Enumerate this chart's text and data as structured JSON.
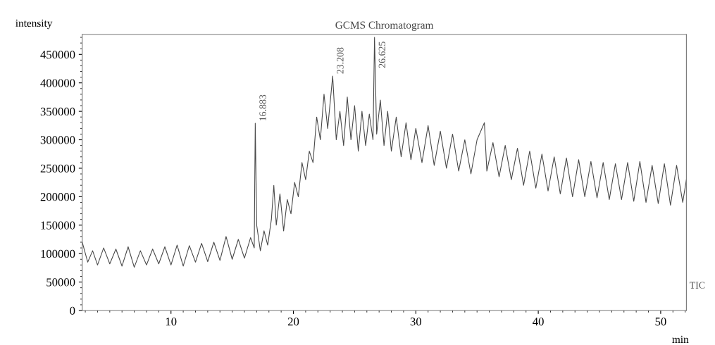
{
  "chart_data": {
    "type": "line",
    "title": "GCMS Chromatogram",
    "xlabel": "min",
    "ylabel": "intensity",
    "xlim": [
      2.75,
      52.1
    ],
    "ylim": [
      0,
      485000
    ],
    "xticks": [
      10,
      20,
      30,
      40,
      50
    ],
    "yticks": [
      0,
      50000,
      100000,
      150000,
      200000,
      250000,
      300000,
      350000,
      400000,
      450000
    ],
    "grid": false,
    "marker": "none",
    "line_style": "solid",
    "annotations": [
      {
        "text": "16.883",
        "x": 16.883,
        "y": 329000
      },
      {
        "text": "23.208",
        "x": 23.208,
        "y": 412000
      },
      {
        "text": "26.625",
        "x": 26.625,
        "y": 480000
      },
      "TIC"
    ],
    "series": [
      {
        "color": "#4a4a4a",
        "x": [
          2.75,
          3.2,
          3.6,
          4.0,
          4.5,
          5.0,
          5.5,
          6.0,
          6.5,
          7.0,
          7.5,
          8.0,
          8.5,
          9.0,
          9.5,
          10.0,
          10.5,
          11.0,
          11.5,
          12.0,
          12.5,
          13.0,
          13.5,
          14.0,
          14.5,
          15.0,
          15.5,
          16.0,
          16.5,
          16.8,
          16.883,
          17.0,
          17.3,
          17.6,
          17.9,
          18.2,
          18.4,
          18.6,
          18.9,
          19.2,
          19.5,
          19.8,
          20.1,
          20.4,
          20.7,
          21.0,
          21.3,
          21.6,
          21.9,
          22.2,
          22.5,
          22.8,
          23.208,
          23.5,
          23.8,
          24.1,
          24.4,
          24.7,
          25.0,
          25.3,
          25.6,
          25.9,
          26.2,
          26.5,
          26.625,
          26.8,
          27.1,
          27.4,
          27.7,
          28.0,
          28.4,
          28.8,
          29.2,
          29.6,
          30.0,
          30.5,
          31.0,
          31.5,
          32.0,
          32.5,
          33.0,
          33.5,
          34.0,
          34.5,
          35.0,
          35.6,
          35.8,
          36.3,
          36.8,
          37.3,
          37.8,
          38.3,
          38.8,
          39.3,
          39.8,
          40.3,
          40.8,
          41.3,
          41.8,
          42.3,
          42.8,
          43.3,
          43.8,
          44.3,
          44.8,
          45.3,
          45.8,
          46.3,
          46.8,
          47.3,
          47.8,
          48.3,
          48.8,
          49.3,
          49.8,
          50.3,
          50.8,
          51.3,
          51.8,
          52.1
        ],
        "values": [
          120000,
          85000,
          105000,
          80000,
          110000,
          82000,
          108000,
          78000,
          112000,
          76000,
          105000,
          80000,
          108000,
          82000,
          112000,
          80000,
          115000,
          78000,
          114000,
          85000,
          118000,
          86000,
          120000,
          88000,
          130000,
          90000,
          125000,
          92000,
          128000,
          110000,
          329000,
          150000,
          105000,
          140000,
          115000,
          160000,
          220000,
          150000,
          205000,
          140000,
          195000,
          170000,
          225000,
          200000,
          260000,
          230000,
          280000,
          260000,
          340000,
          300000,
          380000,
          320000,
          412000,
          300000,
          350000,
          290000,
          375000,
          300000,
          360000,
          280000,
          350000,
          290000,
          345000,
          300000,
          480000,
          310000,
          370000,
          290000,
          350000,
          280000,
          340000,
          270000,
          330000,
          265000,
          320000,
          260000,
          325000,
          255000,
          315000,
          250000,
          310000,
          245000,
          300000,
          240000,
          300000,
          330000,
          245000,
          295000,
          235000,
          290000,
          230000,
          285000,
          220000,
          280000,
          215000,
          275000,
          210000,
          270000,
          205000,
          268000,
          200000,
          265000,
          200000,
          262000,
          198000,
          260000,
          195000,
          258000,
          195000,
          260000,
          192000,
          262000,
          190000,
          255000,
          188000,
          258000,
          185000,
          255000,
          190000,
          230000
        ]
      }
    ]
  }
}
